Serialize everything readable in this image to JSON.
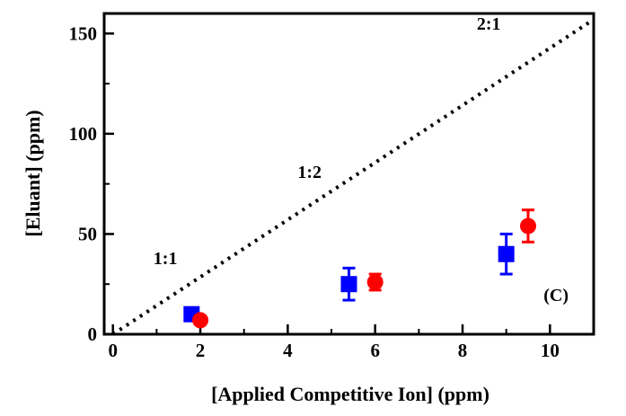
{
  "chart_data": {
    "type": "scatter",
    "xlabel": "[Applied Competitive Ion] (ppm)",
    "ylabel": "[Eluant] (ppm)",
    "xlim": [
      -0.2,
      11
    ],
    "ylim": [
      0,
      160
    ],
    "x_ticks": [
      0,
      2,
      4,
      6,
      8,
      10
    ],
    "y_ticks": [
      0,
      50,
      100,
      150
    ],
    "x_tick_labels": [
      "0",
      "2",
      "4",
      "6",
      "8",
      "10"
    ],
    "y_tick_labels": [
      "0",
      "50",
      "100",
      "150"
    ],
    "panel_label": "(C)",
    "reference_line": {
      "style": "dotted",
      "x": [
        0,
        11
      ],
      "y": [
        0,
        157
      ]
    },
    "annotations": [
      {
        "text": "1:1",
        "x": 1.2,
        "y": 35
      },
      {
        "text": "1:2",
        "x": 4.5,
        "y": 78
      },
      {
        "text": "2:1",
        "x": 8.6,
        "y": 152
      }
    ],
    "series": [
      {
        "marker": "square",
        "color": "#0000ff",
        "points": [
          {
            "x": 1.8,
            "y": 10,
            "err": 2
          },
          {
            "x": 5.4,
            "y": 25,
            "err": 8
          },
          {
            "x": 9.0,
            "y": 40,
            "err": 10
          }
        ]
      },
      {
        "marker": "circle",
        "color": "#ff0000",
        "points": [
          {
            "x": 2.0,
            "y": 7,
            "err": 2
          },
          {
            "x": 6.0,
            "y": 26,
            "err": 4
          },
          {
            "x": 9.5,
            "y": 54,
            "err": 8
          }
        ]
      }
    ]
  }
}
